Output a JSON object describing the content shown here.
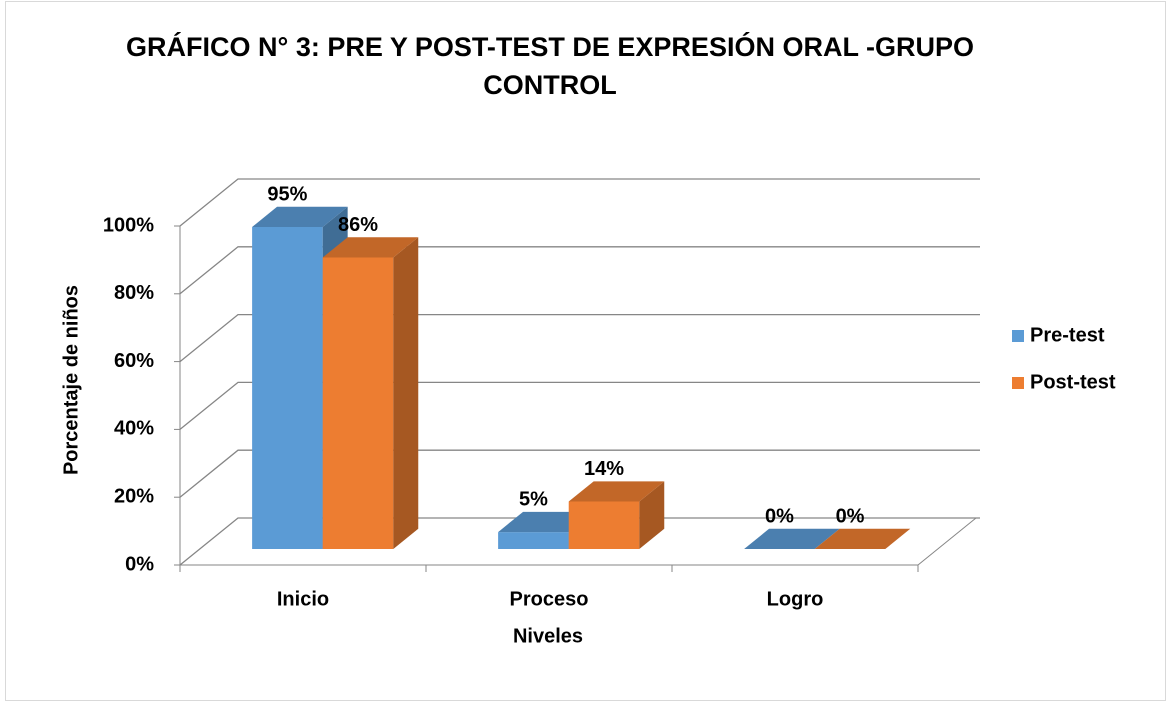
{
  "chart_data": {
    "type": "bar3d",
    "title": "GRÁFICO N° 3: PRE Y POST-TEST DE EXPRESIÓN ORAL -GRUPO CONTROL",
    "xlabel": "Niveles",
    "ylabel": "Porcentaje de niños",
    "categories": [
      "Inicio",
      "Proceso",
      "Logro"
    ],
    "series": [
      {
        "name": "Pre-test",
        "color": "#5b9bd5",
        "values": [
          95,
          5,
          0
        ],
        "value_labels": [
          "95%",
          "5%",
          "0%"
        ]
      },
      {
        "name": "Post-test",
        "color": "#ed7d31",
        "values": [
          86,
          14,
          0
        ],
        "value_labels": [
          "86%",
          "14%",
          "0%"
        ]
      }
    ],
    "ylim": [
      0,
      100
    ],
    "yticks": [
      {
        "value": 0,
        "label": "0%"
      },
      {
        "value": 20,
        "label": "20%"
      },
      {
        "value": 40,
        "label": "40%"
      },
      {
        "value": 60,
        "label": "60%"
      },
      {
        "value": 80,
        "label": "80%"
      },
      {
        "value": 100,
        "label": "100%"
      }
    ],
    "grid": true,
    "legend": "right"
  }
}
